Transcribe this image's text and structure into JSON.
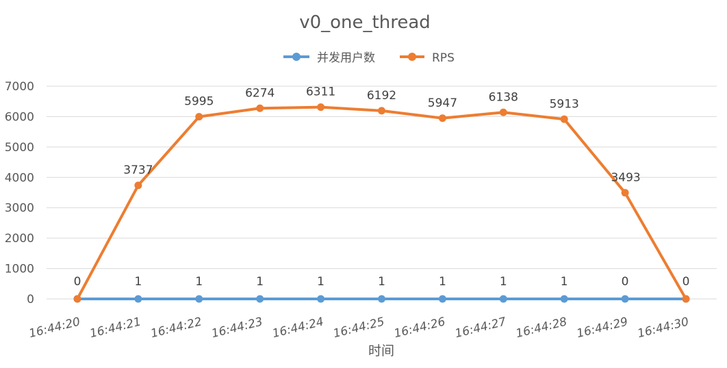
{
  "chart_data": {
    "type": "line",
    "title": "v0_one_thread",
    "xlabel": "时间",
    "ylabel": "",
    "ylim": [
      0,
      7000
    ],
    "yticks": [
      0,
      1000,
      2000,
      3000,
      4000,
      5000,
      6000,
      7000
    ],
    "grid": true,
    "legend_position": "top",
    "categories": [
      "16:44:20",
      "16:44:21",
      "16:44:22",
      "16:44:23",
      "16:44:24",
      "16:44:25",
      "16:44:26",
      "16:44:27",
      "16:44:28",
      "16:44:29",
      "16:44:30"
    ],
    "series": [
      {
        "name": "并发用户数",
        "color": "#5b9bd5",
        "values": [
          0,
          1,
          1,
          1,
          1,
          1,
          1,
          1,
          1,
          0,
          0
        ]
      },
      {
        "name": "RPS",
        "color": "#ed7d31",
        "values": [
          0,
          3737,
          5995,
          6274,
          6311,
          6192,
          5947,
          6138,
          5913,
          3493,
          0
        ]
      }
    ]
  }
}
